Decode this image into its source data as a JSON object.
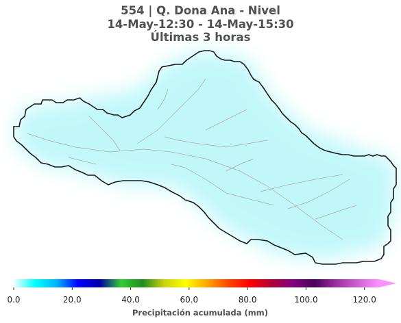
{
  "title": {
    "line1": "554 | Q. Dona Ana - Nivel",
    "line2": "14-May-12:30 - 14-May-15:30",
    "line3": "Últimas 3 horas"
  },
  "map": {
    "outline_color": "#1a1a1a",
    "river_color": "#a8a8a8",
    "precip_color": "#8ff2f6"
  },
  "colorbar": {
    "label": "Precipitación acumulada (mm)",
    "ticks": [
      "0.0",
      "20.0",
      "40.0",
      "60.0",
      "80.0",
      "100.0",
      "120.0"
    ],
    "tick_values": [
      0,
      20,
      40,
      60,
      80,
      100,
      120
    ],
    "vmin": 0,
    "vmax": 125,
    "extend": "max",
    "colors": [
      "#f0ffff",
      "#00ffff",
      "#00b4ff",
      "#0000ff",
      "#0000a8",
      "#32cd32",
      "#228b22",
      "#c8d40a",
      "#ffff00",
      "#ffa500",
      "#ff4500",
      "#ff0000",
      "#b00038",
      "#800080",
      "#4b0059",
      "#9b30a0",
      "#d060d0",
      "#ff90ff"
    ]
  }
}
